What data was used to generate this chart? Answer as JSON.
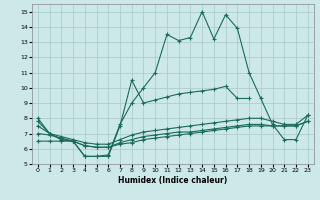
{
  "xlabel": "Humidex (Indice chaleur)",
  "background_color": "#cce8e8",
  "grid_color": "#aac8c8",
  "line_color": "#1a6b5a",
  "xlim": [
    -0.5,
    23.5
  ],
  "ylim": [
    5,
    15.5
  ],
  "xticks": [
    0,
    1,
    2,
    3,
    4,
    5,
    6,
    7,
    8,
    9,
    10,
    11,
    12,
    13,
    14,
    15,
    16,
    17,
    18,
    19,
    20,
    21,
    22,
    23
  ],
  "yticks": [
    5,
    6,
    7,
    8,
    9,
    10,
    11,
    12,
    13,
    14,
    15
  ],
  "line_main_y": [
    8.0,
    7.0,
    6.6,
    6.5,
    5.5,
    5.5,
    5.6,
    7.6,
    9.0,
    10.0,
    11.0,
    13.5,
    13.1,
    13.3,
    15.0,
    13.2,
    14.8,
    13.9,
    11.0,
    9.3,
    7.6,
    6.6,
    6.6,
    8.2
  ],
  "line_diag_y": [
    7.8,
    7.0,
    6.6,
    6.5,
    5.5,
    5.5,
    5.5,
    7.5,
    10.5,
    9.0,
    9.2,
    9.4,
    9.6,
    9.7,
    9.8,
    9.9,
    10.1,
    9.3,
    9.3,
    null,
    null,
    null,
    null,
    null
  ],
  "line_upper_y": [
    null,
    null,
    null,
    null,
    null,
    null,
    null,
    null,
    null,
    null,
    null,
    null,
    null,
    null,
    null,
    null,
    null,
    null,
    null,
    null,
    null,
    null,
    null,
    null
  ],
  "line_flat1_y": [
    7.5,
    7.0,
    6.8,
    6.6,
    6.4,
    6.3,
    6.3,
    6.6,
    6.9,
    7.1,
    7.2,
    7.3,
    7.4,
    7.5,
    7.6,
    7.7,
    7.8,
    7.9,
    8.0,
    8.0,
    7.8,
    7.6,
    7.6,
    8.2
  ],
  "line_flat2_y": [
    7.0,
    6.9,
    6.7,
    6.5,
    6.2,
    6.1,
    6.1,
    6.4,
    6.6,
    6.8,
    6.9,
    7.0,
    7.1,
    7.1,
    7.2,
    7.3,
    7.4,
    7.5,
    7.6,
    7.6,
    7.5,
    7.5,
    7.5,
    7.8
  ],
  "line_flat3_y": [
    6.5,
    6.5,
    6.5,
    6.5,
    6.2,
    6.1,
    6.1,
    6.3,
    6.4,
    6.6,
    6.7,
    6.8,
    6.9,
    7.0,
    7.1,
    7.2,
    7.3,
    7.4,
    7.5,
    7.5,
    7.5,
    7.5,
    7.5,
    7.8
  ]
}
